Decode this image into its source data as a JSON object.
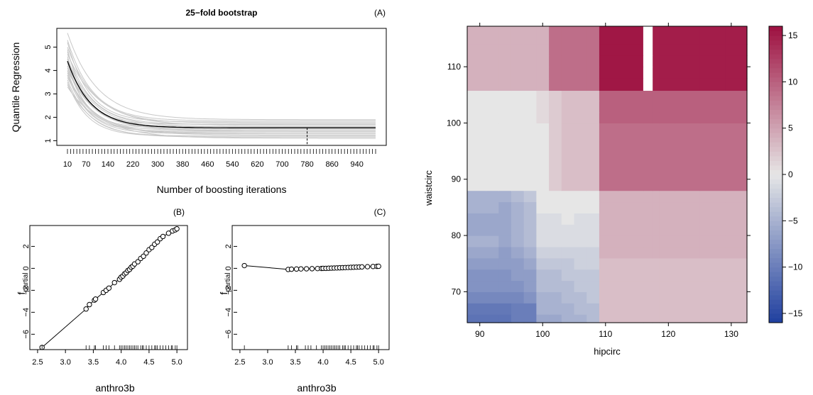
{
  "chart_data": [
    {
      "panel_label": "(A)",
      "type": "line",
      "title": "25−fold bootstrap",
      "xlabel": "Number of boosting iterations",
      "ylabel": "Quantile Regression",
      "x_tick_labels": [
        "10",
        "70",
        "140",
        "220",
        "300",
        "380",
        "460",
        "540",
        "620",
        "700",
        "780",
        "860",
        "940"
      ],
      "x_tick_values": [
        10,
        70,
        140,
        220,
        300,
        380,
        460,
        540,
        620,
        700,
        780,
        860,
        940
      ],
      "y_tick_labels": [
        "1",
        "2",
        "3",
        "4",
        "5"
      ],
      "xlim": [
        10,
        1000
      ],
      "ylim": [
        0.8,
        5.8
      ],
      "mean_curve": {
        "start": 4.4,
        "plateau": 1.55,
        "decay": 75
      },
      "bootstrap_curves": {
        "count": 25,
        "starts": [
          5.6,
          5.3,
          5.2,
          5.0,
          4.9,
          4.8,
          4.7,
          4.6,
          4.5,
          4.5,
          4.4,
          4.3,
          4.2,
          4.2,
          4.1,
          4.0,
          4.0,
          3.9,
          3.8,
          3.8,
          3.7,
          3.6,
          3.5,
          3.4,
          3.3
        ],
        "plateaus": [
          1.9,
          1.85,
          1.8,
          1.75,
          1.7,
          1.7,
          1.65,
          1.6,
          1.6,
          1.55,
          1.55,
          1.5,
          1.5,
          1.45,
          1.45,
          1.4,
          1.4,
          1.35,
          1.3,
          1.3,
          1.25,
          1.2,
          1.2,
          1.15,
          1.1
        ],
        "decays": [
          95,
          80,
          70,
          88,
          60,
          75,
          100,
          65,
          85,
          72,
          58,
          90,
          78,
          66,
          82,
          62,
          96,
          74,
          68,
          86,
          92,
          70,
          64,
          80,
          110
        ]
      },
      "optimal_mstop": 780
    },
    {
      "panel_label": "(B)",
      "type": "scatter",
      "xlabel": "anthro3b",
      "ylabel": "f",
      "ylabel_sub": "partial",
      "x_tick_labels": [
        "2.5",
        "3.0",
        "3.5",
        "4.0",
        "4.5",
        "5.0"
      ],
      "y_tick_labels": [
        "−6",
        "−4",
        "−2",
        "0",
        "2"
      ],
      "xlim": [
        2.45,
        5.1
      ],
      "ylim": [
        -7.4,
        3.9
      ],
      "points": [
        [
          2.58,
          -7.2
        ],
        [
          3.37,
          -3.7
        ],
        [
          3.43,
          -3.3
        ],
        [
          3.52,
          -2.9
        ],
        [
          3.54,
          -2.8
        ],
        [
          3.68,
          -2.2
        ],
        [
          3.73,
          -2.0
        ],
        [
          3.78,
          -1.8
        ],
        [
          3.88,
          -1.3
        ],
        [
          3.97,
          -1.0
        ],
        [
          4.0,
          -0.8
        ],
        [
          4.03,
          -0.7
        ],
        [
          4.06,
          -0.5
        ],
        [
          4.09,
          -0.4
        ],
        [
          4.12,
          -0.2
        ],
        [
          4.15,
          -0.1
        ],
        [
          4.18,
          0.1
        ],
        [
          4.21,
          0.2
        ],
        [
          4.24,
          0.4
        ],
        [
          4.3,
          0.6
        ],
        [
          4.35,
          0.9
        ],
        [
          4.4,
          1.1
        ],
        [
          4.45,
          1.4
        ],
        [
          4.5,
          1.7
        ],
        [
          4.55,
          1.9
        ],
        [
          4.6,
          2.2
        ],
        [
          4.65,
          2.4
        ],
        [
          4.7,
          2.7
        ],
        [
          4.75,
          2.9
        ],
        [
          4.85,
          3.2
        ],
        [
          4.92,
          3.4
        ],
        [
          4.97,
          3.5
        ],
        [
          5.0,
          3.6
        ]
      ]
    },
    {
      "panel_label": "(C)",
      "type": "scatter",
      "xlabel": "anthro3b",
      "ylabel": "f",
      "ylabel_sub": "partial",
      "x_tick_labels": [
        "2.5",
        "3.0",
        "3.5",
        "4.0",
        "4.5",
        "5.0"
      ],
      "y_tick_labels": [
        "−6",
        "−4",
        "−2",
        "0",
        "2"
      ],
      "xlim": [
        2.45,
        5.1
      ],
      "ylim": [
        -7.4,
        3.9
      ],
      "points": [
        [
          2.58,
          0.25
        ],
        [
          3.37,
          -0.1
        ],
        [
          3.43,
          -0.08
        ],
        [
          3.52,
          -0.06
        ],
        [
          3.6,
          -0.05
        ],
        [
          3.7,
          -0.04
        ],
        [
          3.8,
          -0.03
        ],
        [
          3.9,
          -0.02
        ],
        [
          3.97,
          -0.01
        ],
        [
          4.0,
          0.0
        ],
        [
          4.05,
          0.0
        ],
        [
          4.1,
          0.01
        ],
        [
          4.15,
          0.02
        ],
        [
          4.2,
          0.03
        ],
        [
          4.25,
          0.04
        ],
        [
          4.3,
          0.05
        ],
        [
          4.35,
          0.06
        ],
        [
          4.4,
          0.07
        ],
        [
          4.45,
          0.08
        ],
        [
          4.5,
          0.09
        ],
        [
          4.55,
          0.1
        ],
        [
          4.6,
          0.11
        ],
        [
          4.65,
          0.12
        ],
        [
          4.7,
          0.13
        ],
        [
          4.8,
          0.15
        ],
        [
          4.9,
          0.17
        ],
        [
          4.97,
          0.18
        ],
        [
          5.0,
          0.19
        ]
      ],
      "rug": [
        2.58,
        3.37,
        3.43,
        3.52,
        3.54,
        3.68,
        3.73,
        3.78,
        3.88,
        3.97,
        4.0,
        4.03,
        4.06,
        4.09,
        4.12,
        4.15,
        4.18,
        4.21,
        4.24,
        4.27,
        4.3,
        4.35,
        4.38,
        4.4,
        4.45,
        4.5,
        4.55,
        4.6,
        4.62,
        4.65,
        4.7,
        4.75,
        4.8,
        4.85,
        4.9,
        4.92,
        4.97,
        5.0
      ]
    },
    {
      "panel_label": "",
      "type": "heatmap",
      "xlabel": "hipcirc",
      "ylabel": "waistcirc",
      "x_tick_labels": [
        "90",
        "100",
        "110",
        "120",
        "130"
      ],
      "x_tick_values": [
        90,
        100,
        110,
        120,
        130
      ],
      "y_tick_labels": [
        "70",
        "80",
        "90",
        "100",
        "110"
      ],
      "y_tick_values": [
        70,
        80,
        90,
        100,
        110
      ],
      "xlim": [
        88,
        132.5
      ],
      "ylim": [
        64.5,
        117.2
      ],
      "x_breaks": [
        88,
        91,
        93,
        95,
        97,
        99,
        101,
        103,
        105,
        107,
        109,
        112,
        116,
        117.5,
        118.5,
        121,
        125,
        129,
        132.5
      ],
      "y_breaks": [
        64.5,
        66,
        68,
        70,
        72,
        74,
        76,
        78,
        80,
        82,
        84,
        86,
        88,
        91,
        94,
        97,
        100,
        102,
        104,
        105.8,
        108,
        110,
        112,
        114,
        117.2
      ],
      "row_values": [
        [
          -11,
          -11,
          -11,
          -10,
          -10,
          -6,
          -6,
          -5,
          -5,
          -4,
          3,
          3,
          3,
          3,
          3,
          3,
          3,
          3
        ],
        [
          -10.5,
          -10.5,
          -10.5,
          -10,
          -10,
          -5,
          -5,
          -5,
          -4,
          -4,
          3,
          3,
          3,
          3,
          3,
          3,
          3,
          3
        ],
        [
          -9,
          -9,
          -9,
          -9,
          -8,
          -5,
          -5,
          -4,
          -4,
          -3,
          3,
          3,
          3,
          3,
          3,
          3,
          3,
          3
        ],
        [
          -8,
          -8,
          -8,
          -8,
          -7,
          -4,
          -4,
          -4,
          -3,
          -3,
          3,
          3,
          3,
          3,
          3,
          3,
          3,
          3
        ],
        [
          -8,
          -8,
          -8,
          -7,
          -7,
          -4,
          -4,
          -3,
          -3,
          -3,
          3,
          3,
          3,
          3,
          3,
          3,
          3,
          3
        ],
        [
          -7,
          -7,
          -7,
          -7,
          -6,
          -3,
          -3,
          -3,
          -2,
          -2,
          3,
          3,
          3,
          3,
          3,
          3,
          3,
          3
        ],
        [
          -6,
          -6,
          -7,
          -6,
          -5,
          -2,
          -2,
          -2,
          -2,
          -2,
          4,
          4,
          4,
          4,
          4,
          4,
          4,
          4
        ],
        [
          -5,
          -5,
          -6,
          -5,
          -4,
          -1,
          -1,
          -1,
          -1,
          -1,
          4,
          4,
          4,
          4,
          4,
          4,
          4,
          4
        ],
        [
          -6,
          -6,
          -6,
          -5,
          -4,
          -1,
          -1,
          -1,
          -1,
          -1,
          4,
          4,
          4,
          4,
          4,
          4,
          4,
          4
        ],
        [
          -6,
          -6,
          -6,
          -5,
          -4,
          -1,
          -1,
          0,
          -1,
          -1,
          4,
          4,
          4,
          4,
          4,
          4,
          4,
          4
        ],
        [
          -5,
          -5,
          -6,
          -5,
          -4,
          0,
          0,
          0,
          0,
          0,
          4,
          4,
          4,
          4,
          4,
          4,
          4,
          4
        ],
        [
          -5,
          -5,
          -5,
          -4,
          -3,
          0,
          0,
          0,
          0,
          0,
          4,
          4,
          4,
          4,
          4,
          4,
          4,
          4
        ],
        [
          0,
          0,
          0,
          0,
          0,
          0,
          2,
          3,
          3,
          3,
          9,
          9,
          9,
          9,
          9,
          9,
          9,
          9
        ],
        [
          0,
          0,
          0,
          0,
          0,
          0,
          2,
          3,
          3,
          3,
          9,
          9,
          9,
          9,
          9,
          9,
          9,
          9
        ],
        [
          0,
          0,
          0,
          0,
          0,
          0,
          2,
          3,
          3,
          3,
          9,
          9,
          9,
          9,
          9,
          9,
          9,
          9
        ],
        [
          0,
          0,
          0,
          0,
          0,
          0,
          2,
          3,
          3,
          3,
          9,
          9,
          9,
          9,
          9,
          9,
          9,
          9
        ],
        [
          0,
          0,
          0,
          0,
          0,
          1,
          2,
          3,
          3,
          3,
          10,
          10,
          10,
          10,
          10,
          10,
          10,
          10
        ],
        [
          0,
          0,
          0,
          0,
          0,
          1,
          2,
          3,
          3,
          3,
          10,
          10,
          10,
          10,
          10,
          10,
          10,
          10
        ],
        [
          0,
          0,
          0,
          0,
          0,
          1,
          2,
          3,
          3,
          3,
          10,
          10,
          10,
          10,
          10,
          10,
          10,
          10
        ],
        [
          4,
          4,
          4,
          4,
          4,
          4,
          9,
          9,
          9,
          9,
          15.5,
          15.5,
          null,
          15,
          15,
          15,
          15,
          15
        ],
        [
          4,
          4,
          4,
          4,
          4,
          4,
          9,
          9,
          9,
          9,
          15.5,
          15.5,
          null,
          15,
          15,
          15,
          15,
          15
        ],
        [
          4,
          4,
          4,
          4,
          4,
          4,
          9,
          9,
          9,
          9,
          15.5,
          15.5,
          null,
          15,
          15,
          15,
          15,
          15
        ],
        [
          4,
          4,
          4,
          4,
          4,
          4,
          9,
          9,
          9,
          9,
          15.5,
          15.5,
          null,
          15,
          15,
          15,
          15,
          15
        ],
        [
          4,
          4,
          4,
          4,
          4,
          4,
          9,
          9,
          9,
          9,
          15.5,
          15.5,
          null,
          15,
          15,
          15,
          15,
          15
        ]
      ],
      "colorbar": {
        "ticks": [
          "15",
          "10",
          "5",
          "0",
          "−5",
          "−10",
          "−15"
        ],
        "tick_values": [
          15,
          10,
          5,
          0,
          -5,
          -10,
          -15
        ],
        "range": [
          -16,
          16
        ],
        "low_color": "#1f3f9f",
        "mid_color": "#e6e6e6",
        "high_color": "#9e1040"
      }
    }
  ]
}
